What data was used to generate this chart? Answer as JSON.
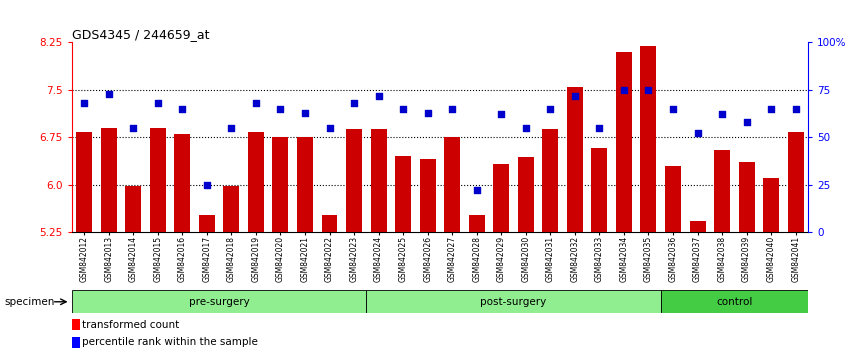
{
  "title": "GDS4345 / 244659_at",
  "samples": [
    "GSM842012",
    "GSM842013",
    "GSM842014",
    "GSM842015",
    "GSM842016",
    "GSM842017",
    "GSM842018",
    "GSM842019",
    "GSM842020",
    "GSM842021",
    "GSM842022",
    "GSM842023",
    "GSM842024",
    "GSM842025",
    "GSM842026",
    "GSM842027",
    "GSM842028",
    "GSM842029",
    "GSM842030",
    "GSM842031",
    "GSM842032",
    "GSM842033",
    "GSM842034",
    "GSM842035",
    "GSM842036",
    "GSM842037",
    "GSM842038",
    "GSM842039",
    "GSM842040",
    "GSM842041"
  ],
  "bar_values": [
    6.83,
    6.9,
    5.97,
    6.9,
    6.8,
    5.52,
    5.97,
    6.83,
    6.75,
    6.75,
    5.52,
    6.88,
    6.88,
    6.45,
    6.4,
    6.75,
    5.52,
    6.33,
    6.43,
    6.88,
    7.55,
    6.58,
    8.1,
    8.2,
    6.3,
    5.42,
    6.55,
    6.35,
    6.1,
    6.83
  ],
  "percentile_values": [
    68,
    73,
    55,
    68,
    65,
    25,
    55,
    68,
    65,
    63,
    55,
    68,
    72,
    65,
    63,
    65,
    22,
    62,
    55,
    65,
    72,
    55,
    75,
    75,
    65,
    52,
    62,
    58,
    65,
    65
  ],
  "groups": [
    {
      "label": "pre-surgery",
      "start": 0,
      "end": 12,
      "color": "#90EE90"
    },
    {
      "label": "post-surgery",
      "start": 12,
      "end": 24,
      "color": "#90EE90"
    },
    {
      "label": "control",
      "start": 24,
      "end": 30,
      "color": "#44CC44"
    }
  ],
  "bar_color": "#CC0000",
  "dot_color": "#0000CC",
  "ybase": 5.25,
  "ylim_left": [
    5.25,
    8.25
  ],
  "ylim_right": [
    0,
    100
  ],
  "yticks_left": [
    5.25,
    6.0,
    6.75,
    7.5,
    8.25
  ],
  "yticks_right": [
    0,
    25,
    50,
    75,
    100
  ],
  "ytick_labels_right": [
    "0",
    "25",
    "50",
    "75",
    "100%"
  ],
  "hlines": [
    6.0,
    6.75,
    7.5
  ],
  "group_label_presurgery_color": "#90EE90",
  "group_label_postsurgery_color": "#90EE90",
  "group_label_control_color": "#44CC44"
}
